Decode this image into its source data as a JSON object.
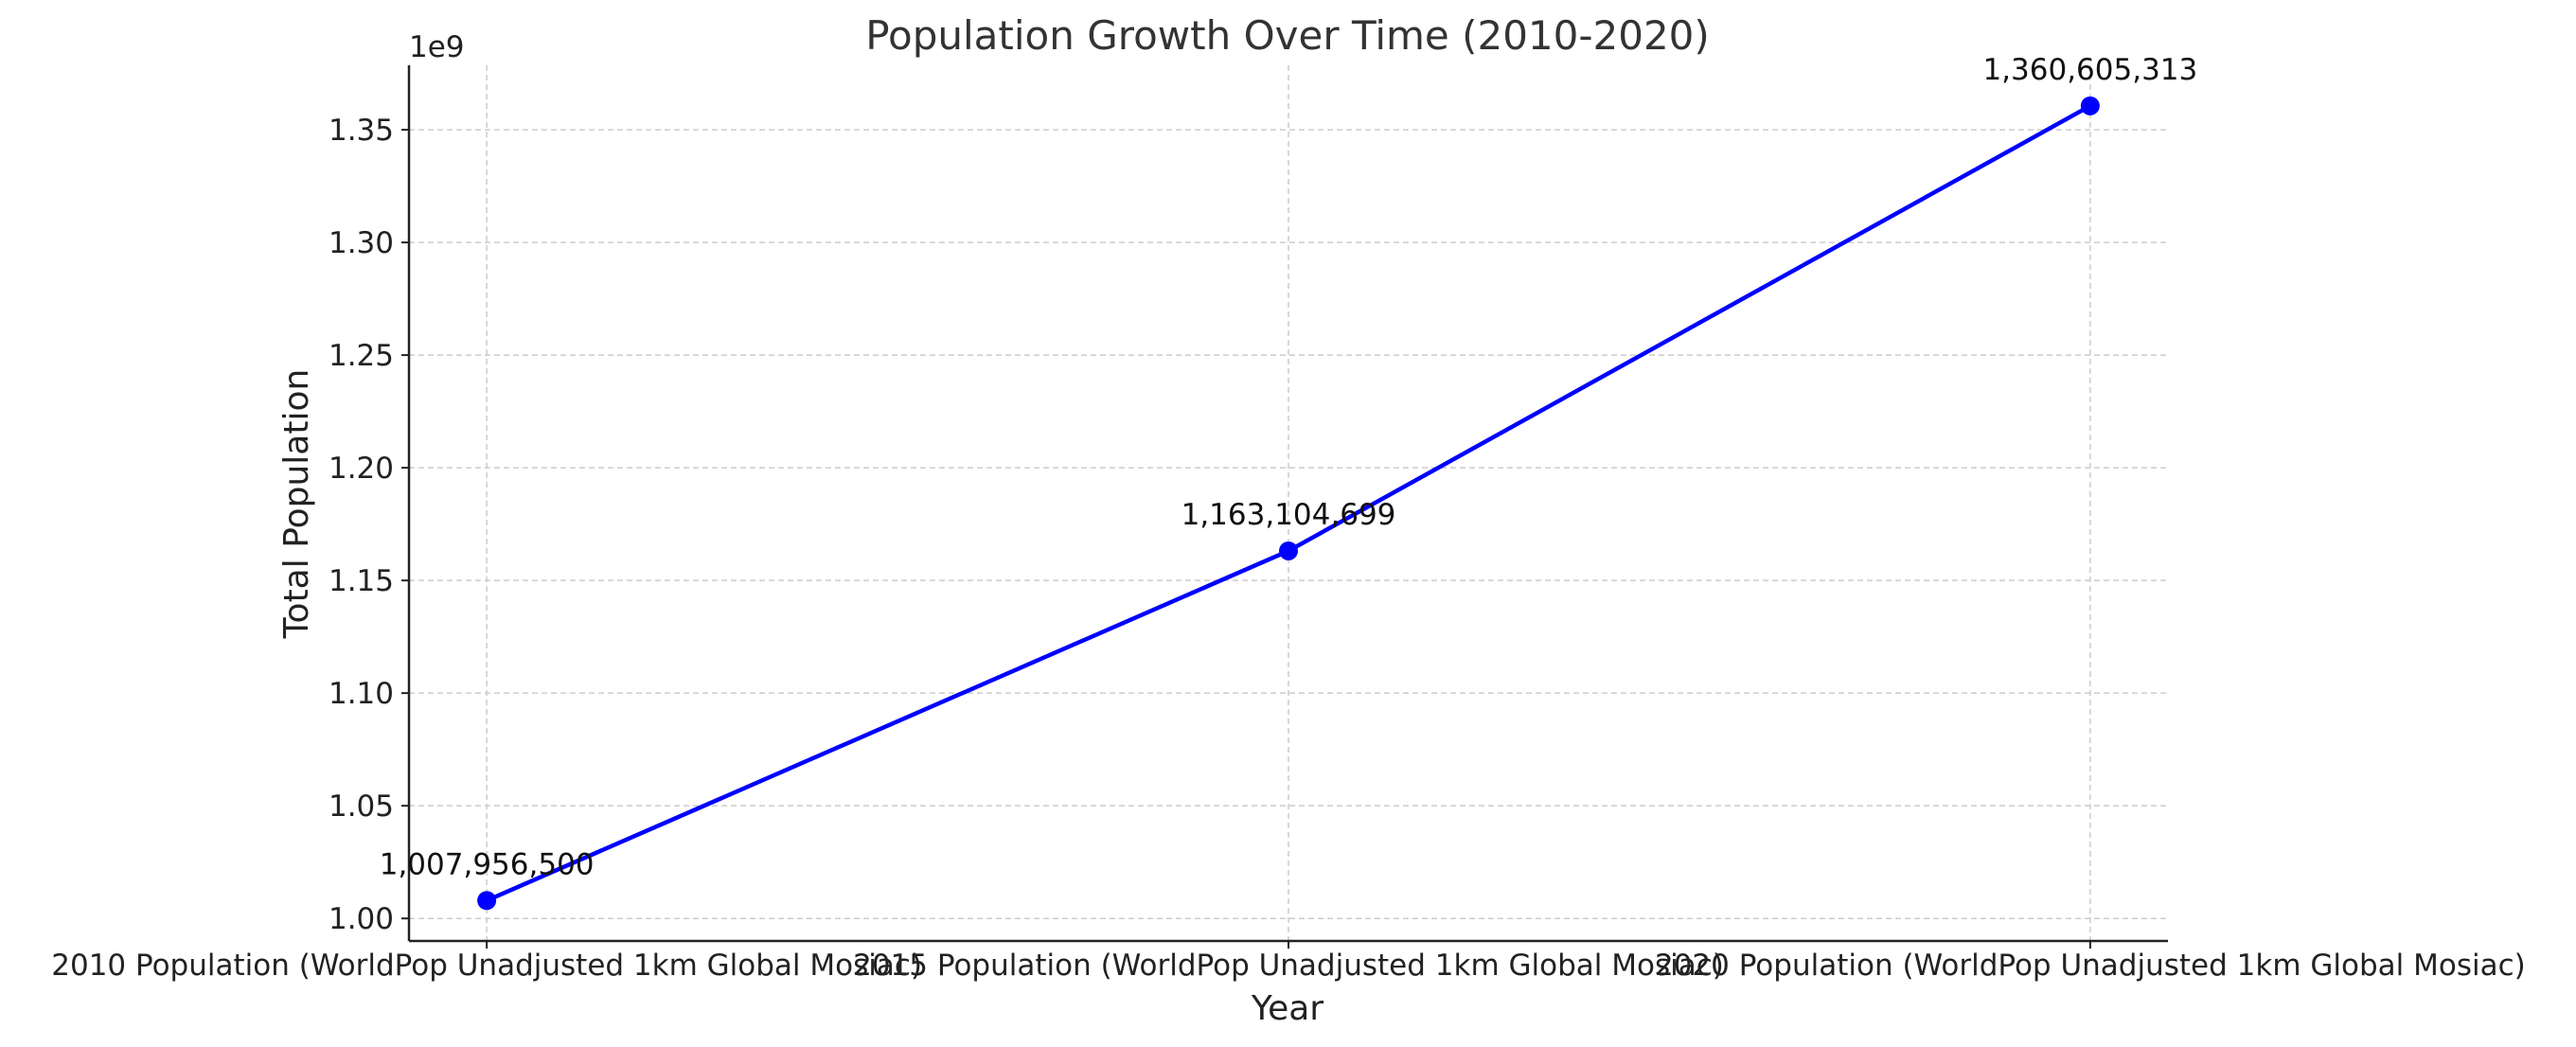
{
  "chart_data": {
    "type": "line",
    "title": "Population Growth Over Time (2010-2020)",
    "xlabel": "Year",
    "ylabel": "Total Population",
    "y_offset_label": "1e9",
    "categories": [
      "2010 Population (WorldPop Unadjusted 1km Global Mosiac)",
      "2015 Population (WorldPop Unadjusted 1km Global Mosiac)",
      "2020 Population (WorldPop Unadjusted 1km Global Mosiac)"
    ],
    "series": [
      {
        "name": "Total Population",
        "color": "#0000ff",
        "values": [
          1007956500,
          1163104699,
          1360605313
        ]
      }
    ],
    "data_labels": [
      "1,007,956,500",
      "1,163,104,699",
      "1,360,605,313"
    ],
    "yticks": [
      1.0,
      1.05,
      1.1,
      1.15,
      1.2,
      1.25,
      1.3,
      1.35
    ],
    "ytick_labels": [
      "1.00",
      "1.05",
      "1.10",
      "1.15",
      "1.20",
      "1.25",
      "1.30",
      "1.35"
    ],
    "ylim": [
      0.99,
      1.3786
    ],
    "y_scale": 1000000000,
    "grid": true
  }
}
